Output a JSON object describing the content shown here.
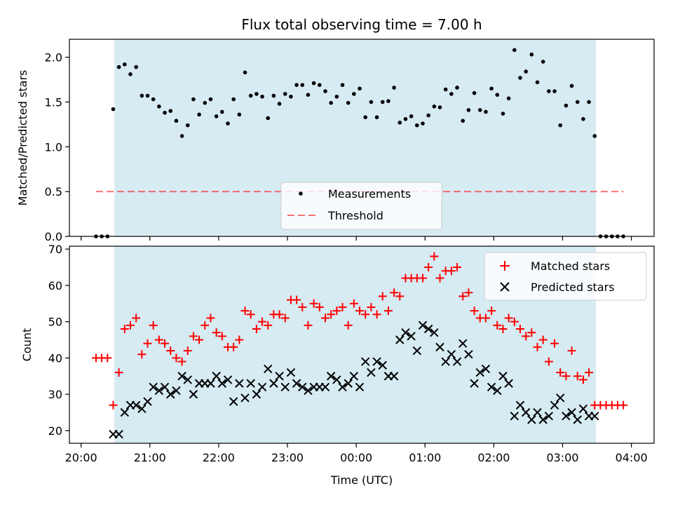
{
  "chart_data": [
    {
      "type": "scatter",
      "title": "Flux total observing time = 7.00 h",
      "xlabel": "",
      "ylabel": "Matched/Predicted stars",
      "ylim": [
        0.0,
        2.2
      ],
      "xlim_hours": [
        19.83,
        28.33
      ],
      "grid": false,
      "legend_placement": "bottom-center",
      "yticks": [
        "0.0",
        "0.5",
        "1.0",
        "1.5",
        "2.0"
      ],
      "shaded_span": {
        "start": "20:29",
        "end": "03:29",
        "color": "#add8e6"
      },
      "threshold": {
        "name": "Threshold",
        "value": 0.5,
        "color": "#ff0000",
        "style": "dashed"
      },
      "series": [
        {
          "name": "Measurements",
          "color": "#000000",
          "marker": "dot",
          "x": [
            "20:13",
            "20:18",
            "20:23",
            "20:28",
            "20:33",
            "20:38",
            "20:43",
            "20:48",
            "20:53",
            "20:58",
            "21:03",
            "21:08",
            "21:13",
            "21:18",
            "21:23",
            "21:28",
            "21:33",
            "21:38",
            "21:43",
            "21:48",
            "21:53",
            "21:58",
            "22:03",
            "22:08",
            "22:13",
            "22:18",
            "22:23",
            "22:28",
            "22:33",
            "22:38",
            "22:43",
            "22:48",
            "22:53",
            "22:58",
            "23:03",
            "23:08",
            "23:13",
            "23:18",
            "23:23",
            "23:28",
            "23:33",
            "23:38",
            "23:43",
            "23:48",
            "23:53",
            "23:58",
            "00:03",
            "00:08",
            "00:13",
            "00:18",
            "00:23",
            "00:28",
            "00:33",
            "00:38",
            "00:43",
            "00:48",
            "00:53",
            "00:58",
            "01:03",
            "01:08",
            "01:13",
            "01:18",
            "01:23",
            "01:28",
            "01:33",
            "01:38",
            "01:43",
            "01:48",
            "01:53",
            "01:58",
            "02:03",
            "02:08",
            "02:13",
            "02:18",
            "02:23",
            "02:28",
            "02:33",
            "02:38",
            "02:43",
            "02:48",
            "02:53",
            "02:58",
            "03:03",
            "03:08",
            "03:13",
            "03:18",
            "03:23",
            "03:28",
            "03:33",
            "03:38",
            "03:43",
            "03:48",
            "03:53"
          ],
          "y": [
            0.0,
            0.0,
            0.0,
            1.42,
            1.89,
            1.92,
            1.81,
            1.89,
            1.57,
            1.57,
            1.53,
            1.45,
            1.38,
            1.4,
            1.29,
            1.12,
            1.24,
            1.53,
            1.36,
            1.49,
            1.53,
            1.34,
            1.39,
            1.26,
            1.53,
            1.36,
            1.83,
            1.57,
            1.59,
            1.56,
            1.32,
            1.57,
            1.48,
            1.59,
            1.56,
            1.69,
            1.69,
            1.58,
            1.71,
            1.69,
            1.62,
            1.49,
            1.56,
            1.69,
            1.49,
            1.59,
            1.65,
            1.33,
            1.5,
            1.33,
            1.5,
            1.51,
            1.66,
            1.27,
            1.31,
            1.34,
            1.24,
            1.26,
            1.35,
            1.45,
            1.44,
            1.64,
            1.59,
            1.66,
            1.29,
            1.41,
            1.6,
            1.41,
            1.39,
            1.65,
            1.58,
            1.37,
            1.54,
            2.08,
            1.77,
            1.84,
            2.03,
            1.72,
            1.95,
            1.62,
            1.62,
            1.24,
            1.46,
            1.68,
            1.5,
            1.31,
            1.5,
            1.12,
            0.0,
            0.0,
            0.0,
            0.0,
            0.0
          ]
        }
      ]
    },
    {
      "type": "scatter",
      "title": "",
      "xlabel": "Time (UTC)",
      "ylabel": "Count",
      "ylim": [
        16.5,
        70.8
      ],
      "xlim_hours": [
        19.83,
        28.33
      ],
      "grid": false,
      "legend_placement": "top-right",
      "yticks": [
        "20",
        "30",
        "40",
        "50",
        "60",
        "70"
      ],
      "xticks": [
        "20:00",
        "21:00",
        "22:00",
        "23:00",
        "00:00",
        "01:00",
        "02:00",
        "03:00",
        "04:00"
      ],
      "shaded_span": {
        "start": "20:29",
        "end": "03:29",
        "color": "#add8e6"
      },
      "series": [
        {
          "name": "Matched stars",
          "color": "#ff0000",
          "marker": "plus",
          "x": [
            "20:13",
            "20:18",
            "20:23",
            "20:28",
            "20:33",
            "20:38",
            "20:43",
            "20:48",
            "20:53",
            "20:58",
            "21:03",
            "21:08",
            "21:13",
            "21:18",
            "21:23",
            "21:28",
            "21:33",
            "21:38",
            "21:43",
            "21:48",
            "21:53",
            "21:58",
            "22:03",
            "22:08",
            "22:13",
            "22:18",
            "22:23",
            "22:28",
            "22:33",
            "22:38",
            "22:43",
            "22:48",
            "22:53",
            "22:58",
            "23:03",
            "23:08",
            "23:13",
            "23:18",
            "23:23",
            "23:28",
            "23:33",
            "23:38",
            "23:43",
            "23:48",
            "23:53",
            "23:58",
            "00:03",
            "00:08",
            "00:13",
            "00:18",
            "00:23",
            "00:28",
            "00:33",
            "00:38",
            "00:43",
            "00:48",
            "00:53",
            "00:58",
            "01:03",
            "01:08",
            "01:13",
            "01:18",
            "01:23",
            "01:28",
            "01:33",
            "01:38",
            "01:43",
            "01:48",
            "01:53",
            "01:58",
            "02:03",
            "02:08",
            "02:13",
            "02:18",
            "02:23",
            "02:28",
            "02:33",
            "02:38",
            "02:43",
            "02:48",
            "02:53",
            "02:58",
            "03:03",
            "03:08",
            "03:13",
            "03:18",
            "03:23",
            "03:28",
            "03:33",
            "03:38",
            "03:43",
            "03:48",
            "03:53"
          ],
          "y": [
            40,
            40,
            40,
            27,
            36,
            48,
            49,
            51,
            41,
            44,
            49,
            45,
            44,
            42,
            40,
            39,
            42,
            46,
            45,
            49,
            51,
            47,
            46,
            43,
            43,
            45,
            53,
            52,
            48,
            50,
            49,
            52,
            52,
            51,
            56,
            56,
            54,
            49,
            55,
            54,
            51,
            52,
            53,
            54,
            49,
            55,
            53,
            52,
            54,
            52,
            57,
            53,
            58,
            57,
            62,
            62,
            62,
            62,
            65,
            68,
            62,
            64,
            64,
            65,
            57,
            58,
            53,
            51,
            51,
            53,
            49,
            48,
            51,
            50,
            48,
            46,
            47,
            43,
            45,
            39,
            44,
            36,
            35,
            42,
            35,
            34,
            36,
            27,
            27,
            27,
            27,
            27,
            27
          ]
        },
        {
          "name": "Predicted stars",
          "color": "#000000",
          "marker": "x",
          "x": [
            "20:28",
            "20:33",
            "20:38",
            "20:43",
            "20:48",
            "20:53",
            "20:58",
            "21:03",
            "21:08",
            "21:13",
            "21:18",
            "21:23",
            "21:28",
            "21:33",
            "21:38",
            "21:43",
            "21:48",
            "21:53",
            "21:58",
            "22:03",
            "22:08",
            "22:13",
            "22:18",
            "22:23",
            "22:28",
            "22:33",
            "22:38",
            "22:43",
            "22:48",
            "22:53",
            "22:58",
            "23:03",
            "23:08",
            "23:13",
            "23:18",
            "23:23",
            "23:28",
            "23:33",
            "23:38",
            "23:43",
            "23:48",
            "23:53",
            "23:58",
            "00:03",
            "00:08",
            "00:13",
            "00:18",
            "00:23",
            "00:28",
            "00:33",
            "00:38",
            "00:43",
            "00:48",
            "00:53",
            "00:58",
            "01:03",
            "01:08",
            "01:13",
            "01:18",
            "01:23",
            "01:28",
            "01:33",
            "01:38",
            "01:43",
            "01:48",
            "01:53",
            "01:58",
            "02:03",
            "02:08",
            "02:13",
            "02:18",
            "02:23",
            "02:28",
            "02:33",
            "02:38",
            "02:43",
            "02:48",
            "02:53",
            "02:58",
            "03:03",
            "03:08",
            "03:13",
            "03:18",
            "03:23",
            "03:28"
          ],
          "y": [
            19,
            19,
            25,
            27,
            27,
            26,
            28,
            32,
            31,
            32,
            30,
            31,
            35,
            34,
            30,
            33,
            33,
            33,
            35,
            33,
            34,
            28,
            33,
            29,
            33,
            30,
            32,
            37,
            33,
            35,
            32,
            36,
            33,
            32,
            31,
            32,
            32,
            32,
            35,
            34,
            32,
            33,
            35,
            32,
            39,
            36,
            39,
            38,
            35,
            35,
            45,
            47,
            46,
            42,
            49,
            48,
            47,
            43,
            39,
            41,
            39,
            44,
            41,
            33,
            36,
            37,
            32,
            31,
            35,
            33,
            24,
            27,
            25,
            23,
            25,
            23,
            24,
            27,
            29,
            24,
            25,
            23,
            26,
            24,
            24
          ]
        }
      ]
    }
  ]
}
